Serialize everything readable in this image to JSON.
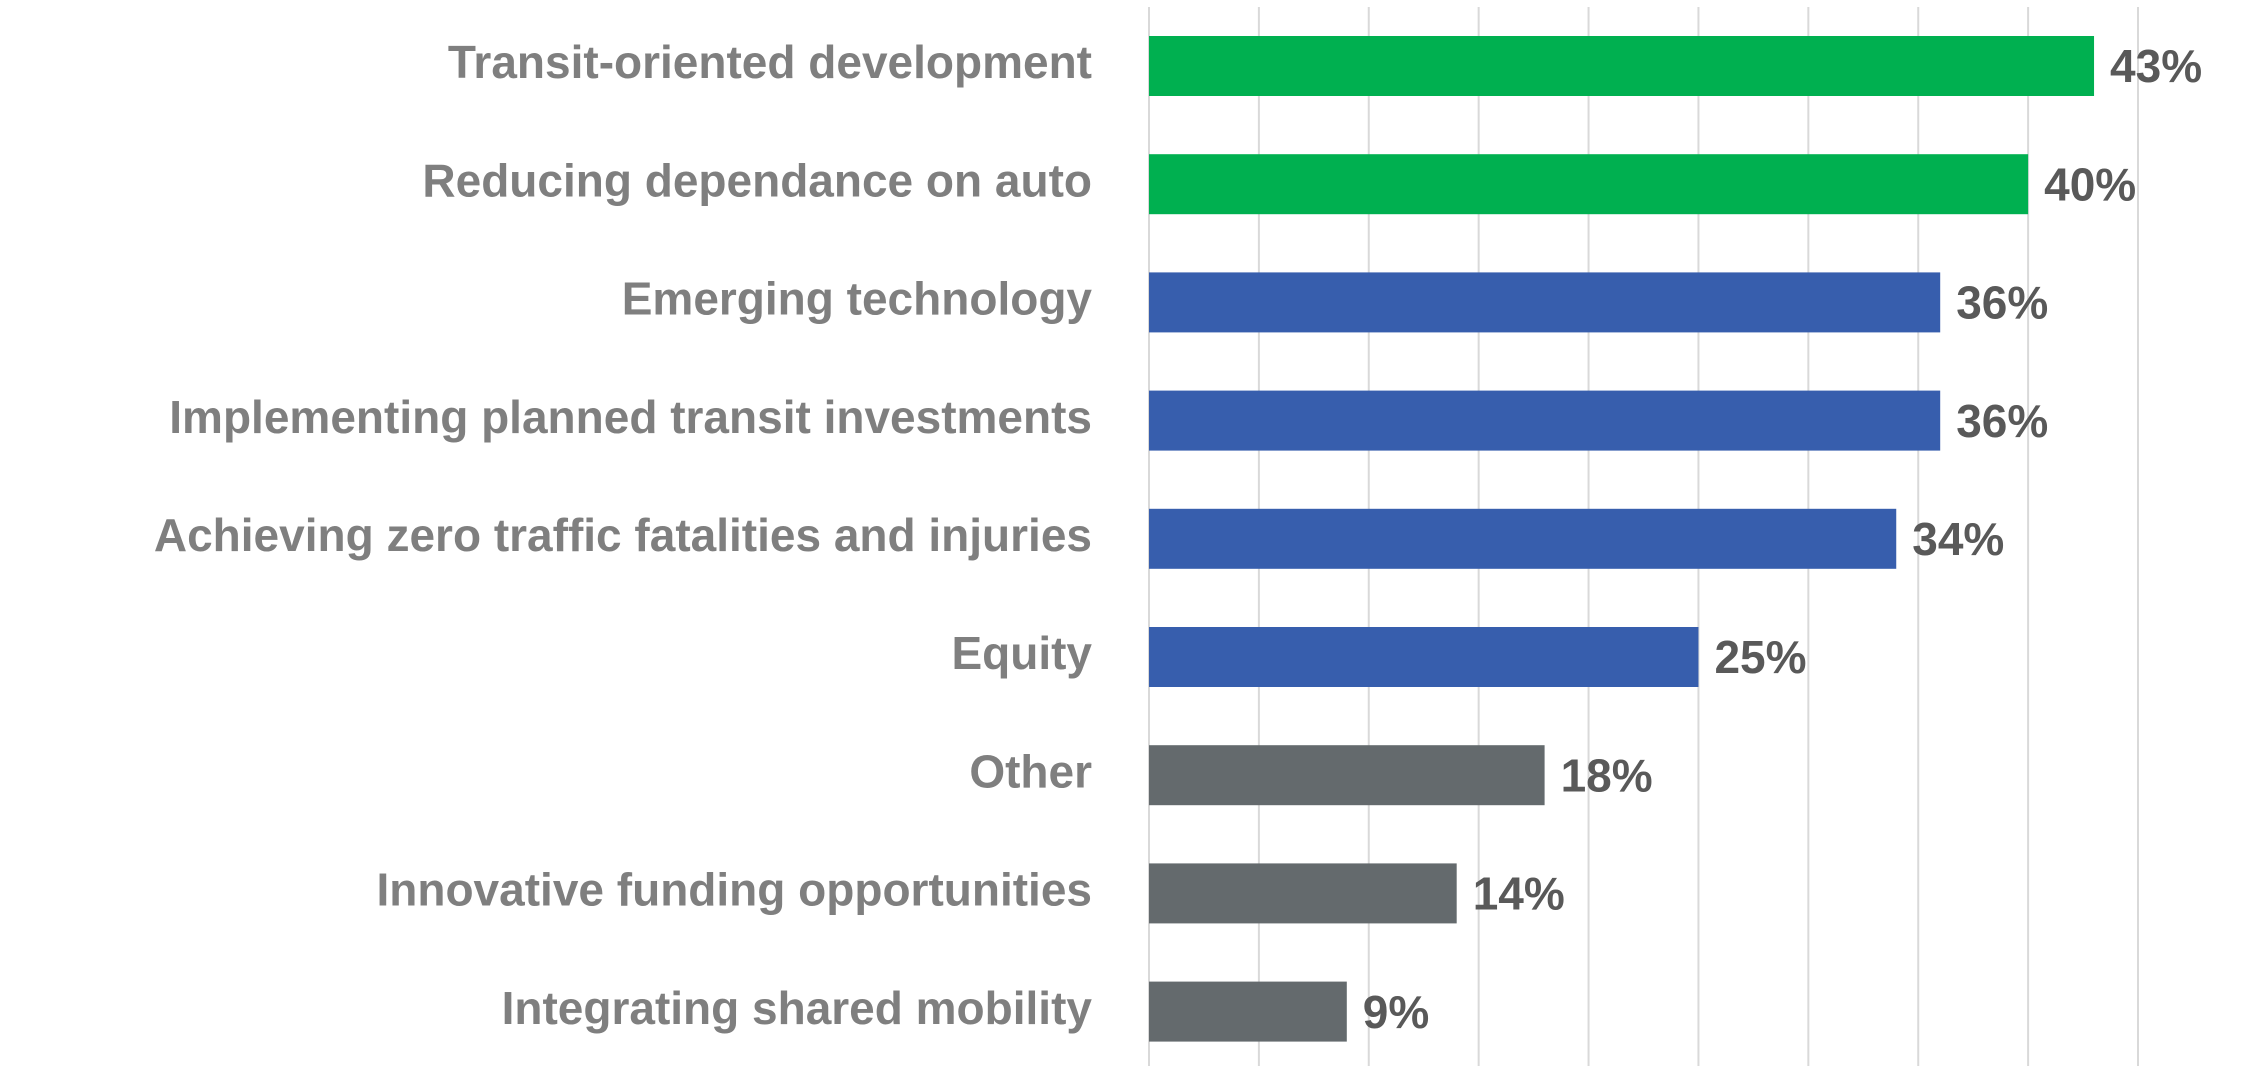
{
  "chart_data": {
    "type": "bar",
    "orientation": "horizontal",
    "categories": [
      "Transit-oriented development",
      "Reducing dependance on auto",
      "Emerging technology",
      "Implementing planned transit investments",
      "Achieving zero traffic fatalities and injuries",
      "Equity",
      "Other",
      "Innovative funding opportunities",
      "Integrating shared mobility"
    ],
    "values": [
      43,
      40,
      36,
      36,
      34,
      25,
      18,
      14,
      9
    ],
    "value_labels": [
      "43%",
      "40%",
      "36%",
      "36%",
      "34%",
      "25%",
      "18%",
      "14%",
      "9%"
    ],
    "colors": [
      "#00b050",
      "#00b050",
      "#375ead",
      "#375ead",
      "#375ead",
      "#375ead",
      "#646a6d",
      "#646a6d",
      "#646a6d"
    ],
    "xlim": [
      0,
      45
    ],
    "xticks": [
      0,
      5,
      10,
      15,
      20,
      25,
      30,
      35,
      40,
      45
    ],
    "grid": true
  }
}
